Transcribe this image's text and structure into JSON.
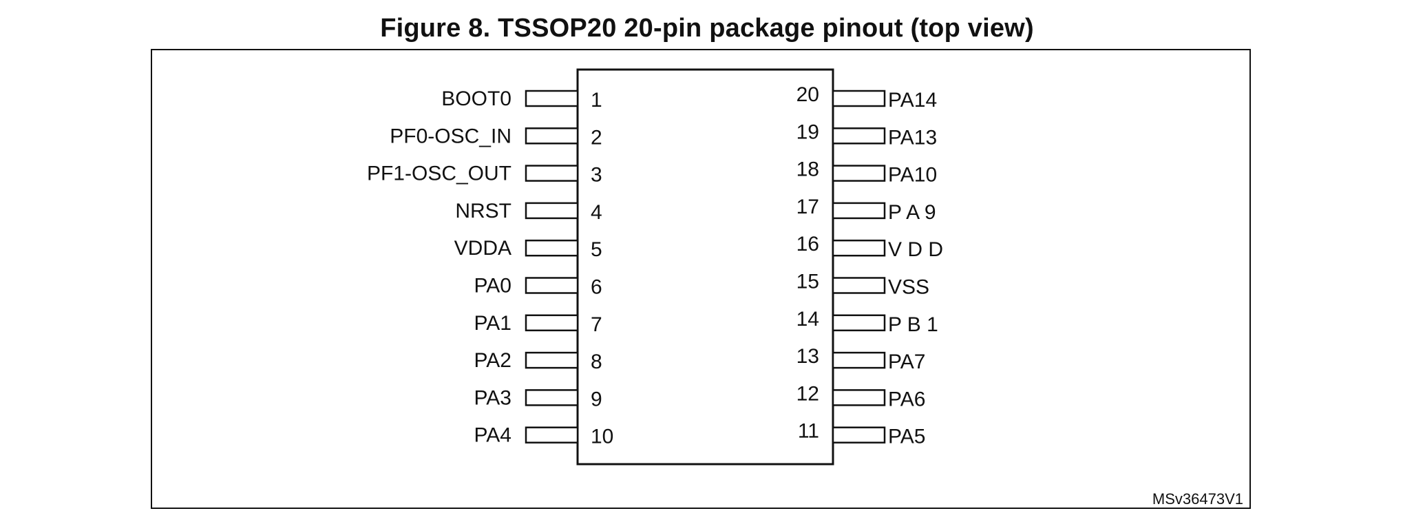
{
  "figure": {
    "title": "Figure 8. TSSOP20 20-pin package pinout (top view)",
    "reference_code": "MSv36473V1"
  },
  "pins_left": [
    {
      "number": "1",
      "label": "BOOT0"
    },
    {
      "number": "2",
      "label": "PF0-OSC_IN"
    },
    {
      "number": "3",
      "label": "PF1-OSC_OUT"
    },
    {
      "number": "4",
      "label": "NRST"
    },
    {
      "number": "5",
      "label": "VDDA"
    },
    {
      "number": "6",
      "label": "PA0"
    },
    {
      "number": "7",
      "label": "PA1"
    },
    {
      "number": "8",
      "label": "PA2"
    },
    {
      "number": "9",
      "label": "PA3"
    },
    {
      "number": "10",
      "label": "PA4"
    }
  ],
  "pins_right": [
    {
      "number": "20",
      "label": "PA14"
    },
    {
      "number": "19",
      "label": "PA13"
    },
    {
      "number": "18",
      "label": "PA10"
    },
    {
      "number": "17",
      "label": "P A 9"
    },
    {
      "number": "16",
      "label": "V D D"
    },
    {
      "number": "15",
      "label": "VSS"
    },
    {
      "number": "14",
      "label": "P B 1"
    },
    {
      "number": "13",
      "label": "PA7"
    },
    {
      "number": "12",
      "label": "PA6"
    },
    {
      "number": "11",
      "label": "PA5"
    }
  ]
}
